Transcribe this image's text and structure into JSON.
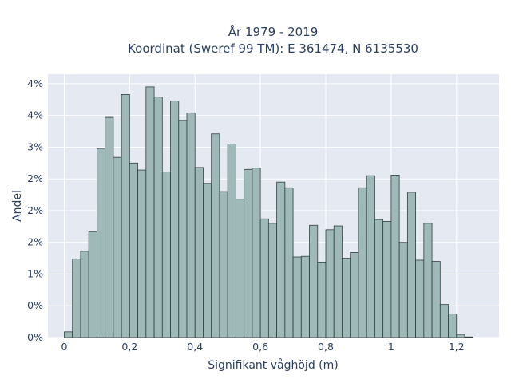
{
  "chart_data": {
    "type": "bar",
    "title": "År 1979 - 2019",
    "subtitle": "Koordinat (Sweref 99 TM): E 361474, N 6135530",
    "xlabel": "Signifikant våghöjd (m)",
    "ylabel": "Andel",
    "xlim": [
      -0.05,
      1.33
    ],
    "ylim": [
      0,
      0.0415
    ],
    "x_ticks": [
      0,
      0.2,
      0.4,
      0.6,
      0.8,
      1.0,
      1.2
    ],
    "x_tick_labels": [
      "0",
      "0,2",
      "0,4",
      "0,6",
      "0,8",
      "1",
      "1,2"
    ],
    "y_ticks": [
      0,
      0.005,
      0.01,
      0.015,
      0.02,
      0.025,
      0.03,
      0.035,
      0.04
    ],
    "y_tick_labels": [
      "0%",
      "0%",
      "1%",
      "2%",
      "2%",
      "2%",
      "3%",
      "4%",
      "4%"
    ],
    "bin_width": 0.025,
    "bin_start": 0.0125,
    "values": [
      0.0009,
      0.0124,
      0.0136,
      0.0167,
      0.0298,
      0.0347,
      0.0284,
      0.0383,
      0.0275,
      0.0264,
      0.0395,
      0.0379,
      0.0261,
      0.0373,
      0.0342,
      0.0354,
      0.0268,
      0.0243,
      0.0321,
      0.023,
      0.0305,
      0.0218,
      0.0265,
      0.0267,
      0.0187,
      0.018,
      0.0245,
      0.0236,
      0.0127,
      0.0128,
      0.0177,
      0.0119,
      0.017,
      0.0176,
      0.0125,
      0.0134,
      0.0236,
      0.0255,
      0.0186,
      0.0183,
      0.0256,
      0.015,
      0.0229,
      0.0122,
      0.018,
      0.012,
      0.0052,
      0.0037,
      0.0005,
      0.0001
    ],
    "grid": true,
    "colors": {
      "bar_fill": "#9fb8b8",
      "bar_edge": "#2f3f3f",
      "plot_bg": "#e5e9f1",
      "text": "#2a3f5f"
    }
  }
}
